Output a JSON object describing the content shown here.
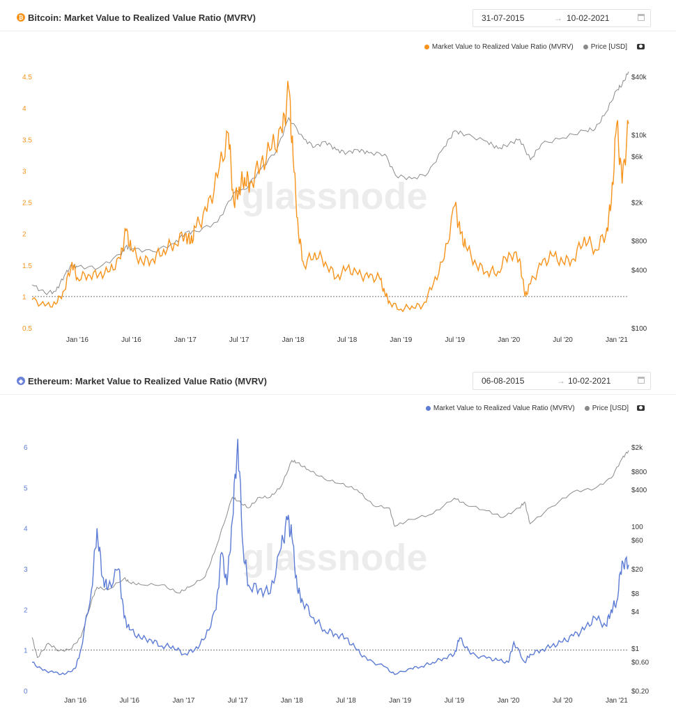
{
  "charts": [
    {
      "title": "Bitcoin: Market Value to Realized Value Ratio (MVRV)",
      "icon": "bitcoin-icon",
      "icon_glyph": "₿",
      "date_start": "31-07-2015",
      "date_end": "10-02-2021",
      "date_arrow": "→",
      "legend": [
        "Market Value to Realized Value Ratio (MVRV)",
        "Price [USD]"
      ],
      "watermark": "glassnode"
    },
    {
      "title": "Ethereum: Market Value to Realized Value Ratio (MVRV)",
      "icon": "ethereum-icon",
      "icon_glyph": "◆",
      "date_start": "06-08-2015",
      "date_end": "10-02-2021",
      "date_arrow": "→",
      "legend": [
        "Market Value to Realized Value Ratio (MVRV)",
        "Price [USD]"
      ],
      "watermark": "glassnode"
    }
  ],
  "chart_data": [
    {
      "type": "line",
      "title": "Bitcoin: Market Value to Realized Value Ratio (MVRV)",
      "x_range": [
        2015.58,
        2021.11
      ],
      "x_ticks": [
        {
          "x": 2016.0,
          "label": "Jan '16"
        },
        {
          "x": 2016.5,
          "label": "Jul '16"
        },
        {
          "x": 2017.0,
          "label": "Jan '17"
        },
        {
          "x": 2017.5,
          "label": "Jul '17"
        },
        {
          "x": 2018.0,
          "label": "Jan '18"
        },
        {
          "x": 2018.5,
          "label": "Jul '18"
        },
        {
          "x": 2019.0,
          "label": "Jan '19"
        },
        {
          "x": 2019.5,
          "label": "Jul '19"
        },
        {
          "x": 2020.0,
          "label": "Jan '20"
        },
        {
          "x": 2020.5,
          "label": "Jul '20"
        },
        {
          "x": 2021.0,
          "label": "Jan '21"
        }
      ],
      "y_left": {
        "range": [
          0.5,
          4.5
        ],
        "ticks": [
          "0.5",
          "1",
          "1.5",
          "2",
          "2.5",
          "3",
          "3.5",
          "4",
          "4.5"
        ],
        "color": "#f7931a"
      },
      "y_right": {
        "scale": "log",
        "range": [
          100,
          40000
        ],
        "ticks": [
          {
            "v": 100,
            "label": "$100"
          },
          {
            "v": 400,
            "label": "$400"
          },
          {
            "v": 800,
            "label": "$800"
          },
          {
            "v": 2000,
            "label": "$2k"
          },
          {
            "v": 6000,
            "label": "$6k"
          },
          {
            "v": 10000,
            "label": "$10k"
          },
          {
            "v": 40000,
            "label": "$40k"
          }
        ]
      },
      "reference_line": 1,
      "series": [
        {
          "name": "Market Value to Realized Value Ratio (MVRV)",
          "axis": "left",
          "color": "#f7931a",
          "x": [
            2015.58,
            2015.7,
            2015.8,
            2015.88,
            2015.95,
            2016.0,
            2016.1,
            2016.2,
            2016.3,
            2016.4,
            2016.45,
            2016.5,
            2016.6,
            2016.7,
            2016.8,
            2016.9,
            2017.0,
            2017.05,
            2017.1,
            2017.2,
            2017.3,
            2017.4,
            2017.45,
            2017.5,
            2017.55,
            2017.6,
            2017.7,
            2017.8,
            2017.9,
            2017.96,
            2018.0,
            2018.05,
            2018.1,
            2018.2,
            2018.3,
            2018.4,
            2018.5,
            2018.6,
            2018.7,
            2018.8,
            2018.85,
            2018.9,
            2019.0,
            2019.1,
            2019.2,
            2019.3,
            2019.4,
            2019.5,
            2019.55,
            2019.6,
            2019.7,
            2019.8,
            2019.9,
            2020.0,
            2020.1,
            2020.15,
            2020.2,
            2020.3,
            2020.4,
            2020.5,
            2020.6,
            2020.7,
            2020.8,
            2020.9,
            2020.95,
            2021.0,
            2021.05,
            2021.11
          ],
          "y": [
            0.95,
            0.85,
            0.88,
            1.1,
            1.55,
            1.3,
            1.35,
            1.35,
            1.4,
            1.6,
            2.05,
            1.75,
            1.55,
            1.6,
            1.75,
            1.85,
            2.0,
            1.85,
            2.1,
            2.35,
            2.9,
            3.6,
            2.5,
            2.75,
            2.9,
            2.8,
            3.1,
            3.35,
            3.6,
            4.3,
            3.2,
            2.0,
            1.5,
            1.7,
            1.55,
            1.3,
            1.45,
            1.35,
            1.3,
            1.3,
            1.05,
            0.9,
            0.8,
            0.85,
            0.85,
            1.2,
            1.6,
            2.45,
            2.0,
            1.8,
            1.5,
            1.4,
            1.4,
            1.7,
            1.6,
            1.0,
            1.2,
            1.5,
            1.65,
            1.55,
            1.6,
            1.95,
            1.75,
            2.0,
            2.5,
            3.75,
            2.8,
            3.75
          ]
        },
        {
          "name": "Price [USD]",
          "axis": "right",
          "color": "#8a8a8a",
          "x": [
            2015.58,
            2015.7,
            2015.8,
            2015.88,
            2015.95,
            2016.0,
            2016.2,
            2016.4,
            2016.45,
            2016.5,
            2016.7,
            2016.9,
            2017.0,
            2017.1,
            2017.3,
            2017.45,
            2017.55,
            2017.7,
            2017.85,
            2017.96,
            2018.1,
            2018.2,
            2018.3,
            2018.4,
            2018.5,
            2018.6,
            2018.7,
            2018.85,
            2018.95,
            2019.1,
            2019.25,
            2019.4,
            2019.5,
            2019.6,
            2019.8,
            2019.9,
            2020.0,
            2020.1,
            2020.2,
            2020.3,
            2020.5,
            2020.7,
            2020.8,
            2020.9,
            2021.0,
            2021.05,
            2021.11
          ],
          "y": [
            280,
            230,
            240,
            350,
            450,
            430,
            420,
            580,
            700,
            660,
            620,
            750,
            970,
            1000,
            1250,
            2500,
            2700,
            4400,
            7000,
            15000,
            9000,
            7500,
            8500,
            7000,
            6500,
            7000,
            6500,
            6300,
            3800,
            3500,
            4000,
            7500,
            11000,
            10000,
            8500,
            7200,
            8000,
            9000,
            5500,
            8000,
            9300,
            11000,
            11500,
            17000,
            29000,
            33000,
            45000
          ]
        }
      ]
    },
    {
      "type": "line",
      "title": "Ethereum: Market Value to Realized Value Ratio (MVRV)",
      "x_range": [
        2015.6,
        2021.11
      ],
      "x_ticks": [
        {
          "x": 2016.0,
          "label": "Jan '16"
        },
        {
          "x": 2016.5,
          "label": "Jul '16"
        },
        {
          "x": 2017.0,
          "label": "Jan '17"
        },
        {
          "x": 2017.5,
          "label": "Jul '17"
        },
        {
          "x": 2018.0,
          "label": "Jan '18"
        },
        {
          "x": 2018.5,
          "label": "Jul '18"
        },
        {
          "x": 2019.0,
          "label": "Jan '19"
        },
        {
          "x": 2019.5,
          "label": "Jul '19"
        },
        {
          "x": 2020.0,
          "label": "Jan '20"
        },
        {
          "x": 2020.5,
          "label": "Jul '20"
        },
        {
          "x": 2021.0,
          "label": "Jan '21"
        }
      ],
      "y_left": {
        "range": [
          0,
          6
        ],
        "ticks": [
          "0",
          "1",
          "2",
          "3",
          "4",
          "5",
          "6"
        ],
        "color": "#5b7bd5"
      },
      "y_right": {
        "scale": "log",
        "range": [
          0.2,
          2000
        ],
        "ticks": [
          {
            "v": 0.2,
            "label": "$0.20"
          },
          {
            "v": 0.6,
            "label": "$0.60"
          },
          {
            "v": 1,
            "label": "$1"
          },
          {
            "v": 4,
            "label": "$4"
          },
          {
            "v": 8,
            "label": "$8"
          },
          {
            "v": 20,
            "label": "$20"
          },
          {
            "v": 60,
            "label": "$60"
          },
          {
            "v": 100,
            "label": "100"
          },
          {
            "v": 400,
            "label": "$400"
          },
          {
            "v": 800,
            "label": "$800"
          },
          {
            "v": 2000,
            "label": "$2k"
          }
        ]
      },
      "reference_line": 1,
      "series": [
        {
          "name": "Market Value to Realized Value Ratio (MVRV)",
          "axis": "left",
          "color": "#5b7bd5",
          "x": [
            2015.6,
            2015.7,
            2015.8,
            2015.9,
            2016.0,
            2016.05,
            2016.15,
            2016.2,
            2016.25,
            2016.3,
            2016.4,
            2016.45,
            2016.5,
            2016.6,
            2016.7,
            2016.8,
            2016.9,
            2017.0,
            2017.1,
            2017.2,
            2017.3,
            2017.35,
            2017.4,
            2017.45,
            2017.5,
            2017.55,
            2017.6,
            2017.7,
            2017.8,
            2017.9,
            2017.96,
            2018.0,
            2018.05,
            2018.1,
            2018.2,
            2018.3,
            2018.4,
            2018.5,
            2018.6,
            2018.7,
            2018.85,
            2018.95,
            2019.1,
            2019.2,
            2019.3,
            2019.4,
            2019.5,
            2019.55,
            2019.65,
            2019.8,
            2019.9,
            2020.0,
            2020.05,
            2020.15,
            2020.2,
            2020.3,
            2020.4,
            2020.5,
            2020.6,
            2020.7,
            2020.8,
            2020.9,
            2020.95,
            2021.0,
            2021.05,
            2021.11
          ],
          "y": [
            0.7,
            0.5,
            0.45,
            0.4,
            0.55,
            1.0,
            2.5,
            4.0,
            2.8,
            2.5,
            3.0,
            1.8,
            1.5,
            1.3,
            1.25,
            1.1,
            1.1,
            0.9,
            1.0,
            1.3,
            2.0,
            3.4,
            2.6,
            4.2,
            6.2,
            3.5,
            2.6,
            2.5,
            2.4,
            3.5,
            4.2,
            3.8,
            2.5,
            2.2,
            1.8,
            1.5,
            1.4,
            1.3,
            1.0,
            0.75,
            0.6,
            0.4,
            0.55,
            0.6,
            0.7,
            0.8,
            0.9,
            1.3,
            0.9,
            0.8,
            0.75,
            0.7,
            1.2,
            0.7,
            0.9,
            1.0,
            1.1,
            1.2,
            1.35,
            1.5,
            1.8,
            1.6,
            2.0,
            2.2,
            3.2,
            3.1
          ]
        },
        {
          "name": "Price [USD]",
          "axis": "right",
          "color": "#8a8a8a",
          "x": [
            2015.6,
            2015.65,
            2015.75,
            2015.85,
            2015.95,
            2016.05,
            2016.15,
            2016.2,
            2016.3,
            2016.45,
            2016.5,
            2016.6,
            2016.8,
            2016.95,
            2017.05,
            2017.2,
            2017.3,
            2017.45,
            2017.5,
            2017.6,
            2017.7,
            2017.8,
            2017.9,
            2018.0,
            2018.05,
            2018.15,
            2018.3,
            2018.45,
            2018.6,
            2018.75,
            2018.9,
            2018.95,
            2019.1,
            2019.3,
            2019.5,
            2019.6,
            2019.8,
            2019.95,
            2020.1,
            2020.15,
            2020.2,
            2020.4,
            2020.6,
            2020.8,
            2020.95,
            2021.05,
            2021.11
          ],
          "y": [
            1.5,
            0.7,
            1.2,
            0.9,
            0.95,
            1.5,
            6.0,
            10,
            9,
            14,
            12,
            11,
            11,
            8,
            10,
            15,
            45,
            300,
            260,
            200,
            300,
            300,
            450,
            1200,
            1100,
            850,
            600,
            500,
            400,
            220,
            200,
            100,
            130,
            160,
            290,
            230,
            180,
            140,
            200,
            250,
            110,
            210,
            370,
            420,
            620,
            1300,
            1750
          ]
        }
      ]
    }
  ]
}
